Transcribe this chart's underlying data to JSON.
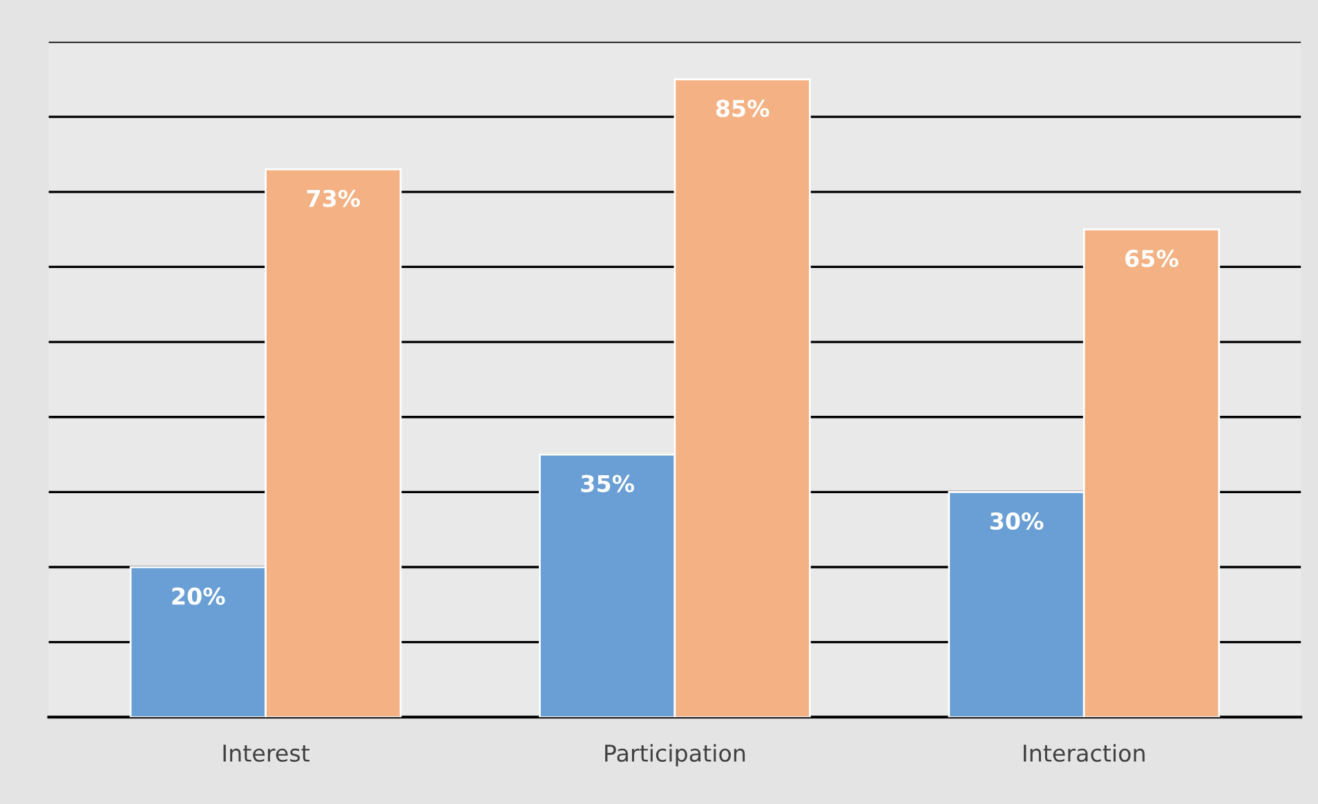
{
  "chart_data": {
    "type": "bar",
    "categories": [
      "Interest",
      "Participation",
      "Interaction"
    ],
    "series": [
      {
        "color": "#6a9fd5",
        "values": [
          20,
          35,
          30
        ],
        "value_labels": [
          "20%",
          "35%",
          "30%"
        ]
      },
      {
        "color": "#f4b183",
        "values": [
          73,
          85,
          65
        ],
        "value_labels": [
          "73%",
          "85%",
          "65%"
        ]
      }
    ],
    "ylim": [
      0,
      90
    ],
    "yticks": [
      {
        "value": 0,
        "label": null
      },
      {
        "value": 10,
        "label": null
      },
      {
        "value": 20,
        "label": null
      },
      {
        "value": 30,
        "label": null
      },
      {
        "value": 40,
        "label": null
      },
      {
        "value": 50,
        "label": null
      },
      {
        "value": 60,
        "label": null
      },
      {
        "value": 70,
        "label": null
      },
      {
        "value": 80,
        "label": null
      },
      {
        "value": 90,
        "label": null
      }
    ],
    "grid": "y",
    "tick_labels": "x",
    "legend": false
  }
}
